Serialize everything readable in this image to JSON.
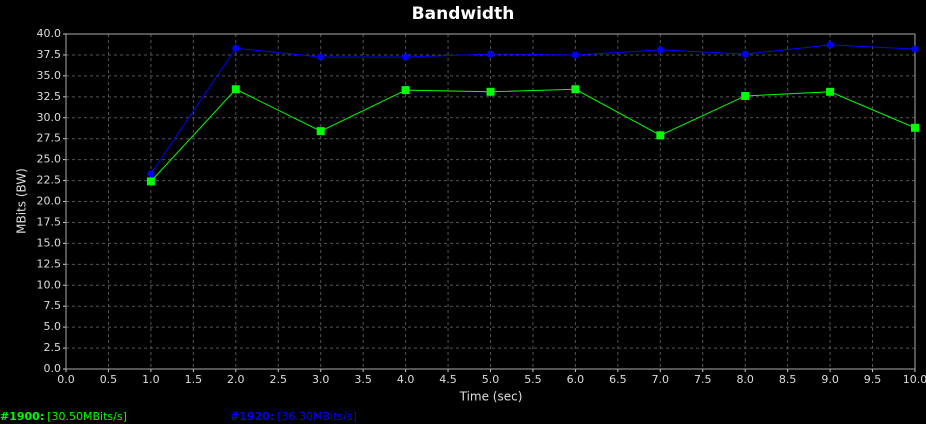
{
  "chart_data": {
    "type": "line",
    "title": "Bandwidth",
    "xlabel": "Time (sec)",
    "ylabel": "MBits (BW)",
    "x": [
      1,
      2,
      3,
      4,
      5,
      6,
      7,
      8,
      9,
      10
    ],
    "series": [
      {
        "name": "#1920:",
        "summary": "[36.30MBits/s]",
        "color": "#0000ff",
        "marker": "circle",
        "values": [
          23.3,
          38.3,
          37.25,
          37.25,
          37.6,
          37.5,
          38.1,
          37.6,
          38.7,
          38.2
        ]
      },
      {
        "name": "#1900:",
        "summary": "[30.50MBits/s]",
        "color": "#00ff00",
        "marker": "square",
        "values": [
          22.4,
          33.4,
          28.4,
          33.3,
          33.1,
          33.4,
          27.9,
          32.6,
          33.1,
          28.8
        ]
      }
    ],
    "xlim": [
      0,
      10
    ],
    "xticks": [
      {
        "value": 0,
        "label": "0.0"
      },
      0.5,
      {
        "value": 1,
        "label": "1.0"
      },
      1.5,
      {
        "value": 2,
        "label": "2.0"
      },
      2.5,
      {
        "value": 3,
        "label": "3.0"
      },
      3.5,
      {
        "value": 4,
        "label": "4.0"
      },
      4.5,
      {
        "value": 5,
        "label": "5.0"
      },
      5.5,
      {
        "value": 6,
        "label": "6.0"
      },
      6.5,
      {
        "value": 7,
        "label": "7.0"
      },
      7.5,
      {
        "value": 8,
        "label": "8.0"
      },
      8.5,
      {
        "value": 9,
        "label": "9.0"
      },
      9.5,
      {
        "value": 10,
        "label": "10.0"
      }
    ],
    "ylim": [
      0,
      40
    ],
    "yticks": [
      {
        "value": 0,
        "label": "0.0"
      },
      2.5,
      {
        "value": 5,
        "label": "5.0"
      },
      7.5,
      {
        "value": 10,
        "label": "10.0"
      },
      12.5,
      {
        "value": 15,
        "label": "15.0"
      },
      17.5,
      {
        "value": 20,
        "label": "20.0"
      },
      22.5,
      {
        "value": 25,
        "label": "25.0"
      },
      27.5,
      {
        "value": 30,
        "label": "30.0"
      },
      32.5,
      {
        "value": 35,
        "label": "35.0"
      },
      37.5,
      {
        "value": 40,
        "label": "40.0"
      }
    ],
    "grid": true
  }
}
